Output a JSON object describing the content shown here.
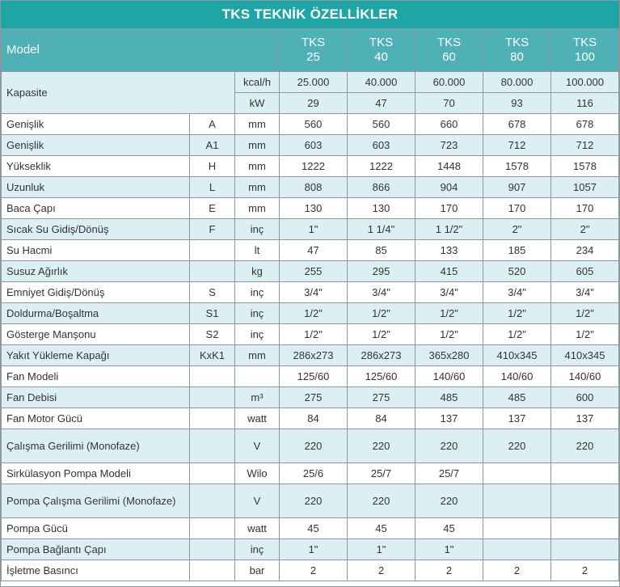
{
  "title": "TKS TEKNİK ÖZELLİKLER",
  "header": {
    "model_label": "Model",
    "models": [
      {
        "line1": "TKS",
        "line2": "25"
      },
      {
        "line1": "TKS",
        "line2": "40"
      },
      {
        "line1": "TKS",
        "line2": "60"
      },
      {
        "line1": "TKS",
        "line2": "80"
      },
      {
        "line1": "TKS",
        "line2": "100"
      }
    ]
  },
  "capacity": {
    "label": "Kapasite",
    "rows": [
      {
        "unit": "kcal/h",
        "values": [
          "25.000",
          "40.000",
          "60.000",
          "80.000",
          "100.000"
        ]
      },
      {
        "unit": "kW",
        "values": [
          "29",
          "47",
          "70",
          "93",
          "116"
        ]
      }
    ]
  },
  "rows": [
    {
      "label": "Genişlik",
      "symbol": "A",
      "unit": "mm",
      "values": [
        "560",
        "560",
        "660",
        "678",
        "678"
      ]
    },
    {
      "label": "Genişlik",
      "symbol": "A1",
      "unit": "mm",
      "values": [
        "603",
        "603",
        "723",
        "712",
        "712"
      ]
    },
    {
      "label": "Yükseklik",
      "symbol": "H",
      "unit": "mm",
      "values": [
        "1222",
        "1222",
        "1448",
        "1578",
        "1578"
      ]
    },
    {
      "label": "Uzunluk",
      "symbol": "L",
      "unit": "mm",
      "values": [
        "808",
        "866",
        "904",
        "907",
        "1057"
      ]
    },
    {
      "label": "Baca Çapı",
      "symbol": "E",
      "unit": "mm",
      "values": [
        "130",
        "130",
        "170",
        "170",
        "170"
      ]
    },
    {
      "label": "Sıcak Su Gidiş/Dönüş",
      "symbol": "F",
      "unit": "inç",
      "values": [
        "1\"",
        "1 1/4\"",
        "1 1/2\"",
        "2\"",
        "2\""
      ]
    },
    {
      "label": "Su Hacmi",
      "symbol": "",
      "unit": "lt",
      "values": [
        "47",
        "85",
        "133",
        "185",
        "234"
      ]
    },
    {
      "label": "Susuz Ağırlık",
      "symbol": "",
      "unit": "kg",
      "values": [
        "255",
        "295",
        "415",
        "520",
        "605"
      ]
    },
    {
      "label": "Emniyet Gidiş/Dönüş",
      "symbol": "S",
      "unit": "inç",
      "values": [
        "3/4\"",
        "3/4\"",
        "3/4\"",
        "3/4\"",
        "3/4\""
      ]
    },
    {
      "label": "Doldurma/Boşaltma",
      "symbol": "S1",
      "unit": "inç",
      "values": [
        "1/2\"",
        "1/2\"",
        "1/2\"",
        "1/2\"",
        "1/2\""
      ]
    },
    {
      "label": "Gösterge Manşonu",
      "symbol": "S2",
      "unit": "inç",
      "values": [
        "1/2\"",
        "1/2\"",
        "1/2\"",
        "1/2\"",
        "1/2\""
      ]
    },
    {
      "label": "Yakıt Yükleme Kapağı",
      "symbol": "KxK1",
      "unit": "mm",
      "values": [
        "286x273",
        "286x273",
        "365x280",
        "410x345",
        "410x345"
      ]
    },
    {
      "label": "Fan Modeli",
      "symbol": "",
      "unit": "",
      "values": [
        "125/60",
        "125/60",
        "140/60",
        "140/60",
        "140/60"
      ]
    },
    {
      "label": "Fan Debisi",
      "symbol": "",
      "unit": "m³",
      "values": [
        "275",
        "275",
        "485",
        "485",
        "600"
      ]
    },
    {
      "label": "Fan Motor Gücü",
      "symbol": "",
      "unit": "watt",
      "values": [
        "84",
        "84",
        "137",
        "137",
        "137"
      ]
    },
    {
      "label": "Çalışma Gerilimi (Monofaze)",
      "symbol": "",
      "unit": "V",
      "values": [
        "220",
        "220",
        "220",
        "220",
        "220"
      ],
      "tall": true
    },
    {
      "label": "Sirkülasyon Pompa Modeli",
      "symbol": "",
      "unit": "Wilo",
      "values": [
        "25/6",
        "25/7",
        "25/7",
        "",
        ""
      ]
    },
    {
      "label": "Pompa Çalışma Gerilimi (Monofaze)",
      "symbol": "",
      "unit": "V",
      "values": [
        "220",
        "220",
        "220",
        "",
        ""
      ],
      "tall": true
    },
    {
      "label": "Pompa Gücü",
      "symbol": "",
      "unit": "watt",
      "values": [
        "45",
        "45",
        "45",
        "",
        ""
      ]
    },
    {
      "label": "Pompa Bağlantı Çapı",
      "symbol": "",
      "unit": "inç",
      "values": [
        "1\"",
        "1\"",
        "1\"",
        "",
        ""
      ]
    },
    {
      "label": "İşletme Basıncı",
      "symbol": "",
      "unit": "bar",
      "values": [
        "2",
        "2",
        "2",
        "2",
        "2"
      ]
    }
  ]
}
